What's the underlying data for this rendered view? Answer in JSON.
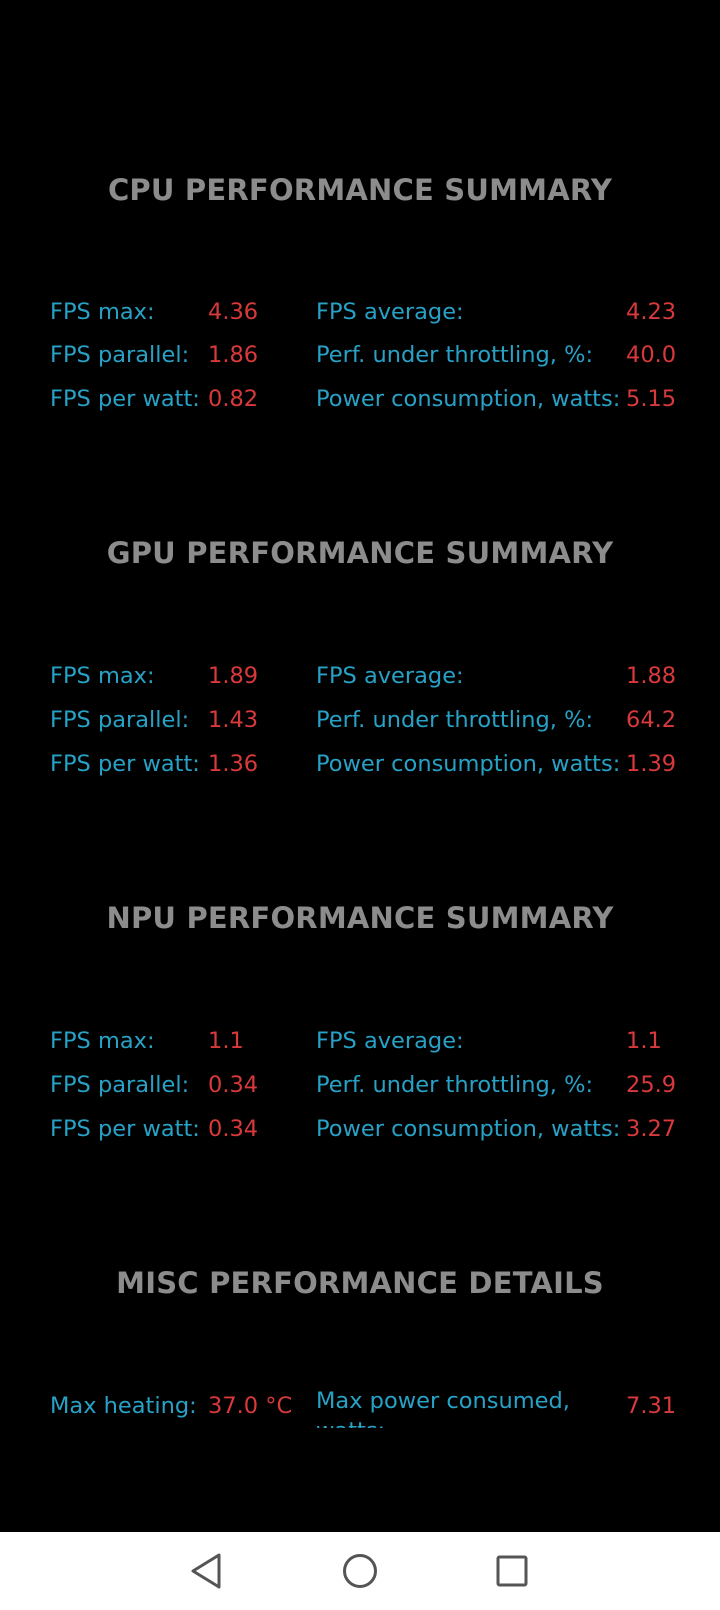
{
  "sections": [
    {
      "title": "CPU PERFORMANCE SUMMARY",
      "left": [
        {
          "label": "FPS max:",
          "value": "4.36"
        },
        {
          "label": "FPS parallel:",
          "value": "1.86"
        },
        {
          "label": "FPS per watt:",
          "value": "0.82"
        }
      ],
      "right": [
        {
          "label": "FPS average:",
          "value": "4.23"
        },
        {
          "label": "Perf. under throttling, %:",
          "value": "40.0"
        },
        {
          "label": "Power consumption, watts:",
          "value": "5.15"
        }
      ]
    },
    {
      "title": "GPU PERFORMANCE SUMMARY",
      "left": [
        {
          "label": "FPS max:",
          "value": "1.89"
        },
        {
          "label": "FPS parallel:",
          "value": "1.43"
        },
        {
          "label": "FPS per watt:",
          "value": "1.36"
        }
      ],
      "right": [
        {
          "label": "FPS average:",
          "value": "1.88"
        },
        {
          "label": "Perf. under throttling, %:",
          "value": "64.2"
        },
        {
          "label": "Power consumption, watts:",
          "value": "1.39"
        }
      ]
    },
    {
      "title": "NPU PERFORMANCE SUMMARY",
      "left": [
        {
          "label": "FPS max:",
          "value": "1.1"
        },
        {
          "label": "FPS parallel:",
          "value": "0.34"
        },
        {
          "label": "FPS per watt:",
          "value": "0.34"
        }
      ],
      "right": [
        {
          "label": "FPS average:",
          "value": "1.1"
        },
        {
          "label": "Perf. under throttling, %:",
          "value": "25.9"
        },
        {
          "label": "Power consumption, watts:",
          "value": "3.27"
        }
      ]
    }
  ],
  "misc": {
    "title": "MISC PERFORMANCE DETAILS",
    "max_heating_label": "Max heating:",
    "max_heating_value": "37.0 °C",
    "max_power_label_line1": "Max power consumed,",
    "max_power_label_line2": "watts:",
    "max_power_value": "7.31"
  },
  "nav": {
    "back_icon": "back-triangle-icon",
    "home_icon": "home-circle-icon",
    "recents_icon": "recents-square-icon"
  }
}
